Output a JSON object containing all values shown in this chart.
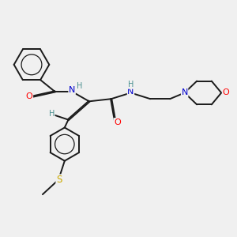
{
  "bg_color": "#f0f0f0",
  "bond_color": "#1a1a1a",
  "atom_colors": {
    "O": "#ff0000",
    "N": "#0000cd",
    "S": "#ccaa00",
    "H": "#4a9090",
    "C": "#1a1a1a"
  }
}
